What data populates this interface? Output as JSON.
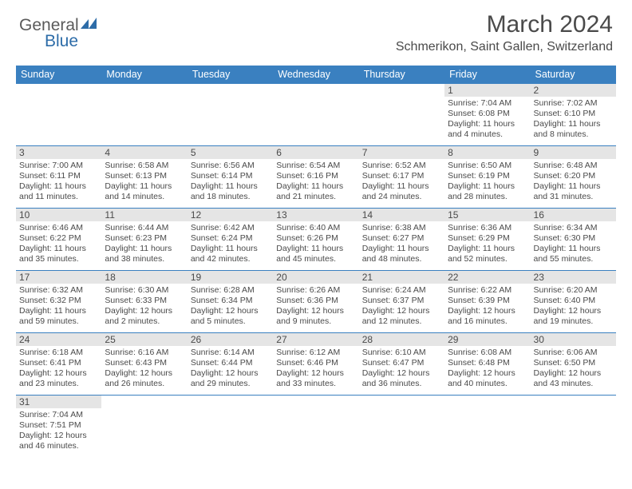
{
  "logo": {
    "text1": "General",
    "text2": "Blue"
  },
  "title": "March 2024",
  "location": "Schmerikon, Saint Gallen, Switzerland",
  "colors": {
    "header_bg": "#3a80c0",
    "header_text": "#ffffff",
    "daynum_bg": "#e5e5e5",
    "border": "#3a80c0",
    "text": "#4a4a4a",
    "logo_blue": "#2d6ca8"
  },
  "weekdays": [
    "Sunday",
    "Monday",
    "Tuesday",
    "Wednesday",
    "Thursday",
    "Friday",
    "Saturday"
  ],
  "grid": [
    [
      null,
      null,
      null,
      null,
      null,
      {
        "n": "1",
        "sr": "Sunrise: 7:04 AM",
        "ss": "Sunset: 6:08 PM",
        "dl1": "Daylight: 11 hours",
        "dl2": "and 4 minutes."
      },
      {
        "n": "2",
        "sr": "Sunrise: 7:02 AM",
        "ss": "Sunset: 6:10 PM",
        "dl1": "Daylight: 11 hours",
        "dl2": "and 8 minutes."
      }
    ],
    [
      {
        "n": "3",
        "sr": "Sunrise: 7:00 AM",
        "ss": "Sunset: 6:11 PM",
        "dl1": "Daylight: 11 hours",
        "dl2": "and 11 minutes."
      },
      {
        "n": "4",
        "sr": "Sunrise: 6:58 AM",
        "ss": "Sunset: 6:13 PM",
        "dl1": "Daylight: 11 hours",
        "dl2": "and 14 minutes."
      },
      {
        "n": "5",
        "sr": "Sunrise: 6:56 AM",
        "ss": "Sunset: 6:14 PM",
        "dl1": "Daylight: 11 hours",
        "dl2": "and 18 minutes."
      },
      {
        "n": "6",
        "sr": "Sunrise: 6:54 AM",
        "ss": "Sunset: 6:16 PM",
        "dl1": "Daylight: 11 hours",
        "dl2": "and 21 minutes."
      },
      {
        "n": "7",
        "sr": "Sunrise: 6:52 AM",
        "ss": "Sunset: 6:17 PM",
        "dl1": "Daylight: 11 hours",
        "dl2": "and 24 minutes."
      },
      {
        "n": "8",
        "sr": "Sunrise: 6:50 AM",
        "ss": "Sunset: 6:19 PM",
        "dl1": "Daylight: 11 hours",
        "dl2": "and 28 minutes."
      },
      {
        "n": "9",
        "sr": "Sunrise: 6:48 AM",
        "ss": "Sunset: 6:20 PM",
        "dl1": "Daylight: 11 hours",
        "dl2": "and 31 minutes."
      }
    ],
    [
      {
        "n": "10",
        "sr": "Sunrise: 6:46 AM",
        "ss": "Sunset: 6:22 PM",
        "dl1": "Daylight: 11 hours",
        "dl2": "and 35 minutes."
      },
      {
        "n": "11",
        "sr": "Sunrise: 6:44 AM",
        "ss": "Sunset: 6:23 PM",
        "dl1": "Daylight: 11 hours",
        "dl2": "and 38 minutes."
      },
      {
        "n": "12",
        "sr": "Sunrise: 6:42 AM",
        "ss": "Sunset: 6:24 PM",
        "dl1": "Daylight: 11 hours",
        "dl2": "and 42 minutes."
      },
      {
        "n": "13",
        "sr": "Sunrise: 6:40 AM",
        "ss": "Sunset: 6:26 PM",
        "dl1": "Daylight: 11 hours",
        "dl2": "and 45 minutes."
      },
      {
        "n": "14",
        "sr": "Sunrise: 6:38 AM",
        "ss": "Sunset: 6:27 PM",
        "dl1": "Daylight: 11 hours",
        "dl2": "and 48 minutes."
      },
      {
        "n": "15",
        "sr": "Sunrise: 6:36 AM",
        "ss": "Sunset: 6:29 PM",
        "dl1": "Daylight: 11 hours",
        "dl2": "and 52 minutes."
      },
      {
        "n": "16",
        "sr": "Sunrise: 6:34 AM",
        "ss": "Sunset: 6:30 PM",
        "dl1": "Daylight: 11 hours",
        "dl2": "and 55 minutes."
      }
    ],
    [
      {
        "n": "17",
        "sr": "Sunrise: 6:32 AM",
        "ss": "Sunset: 6:32 PM",
        "dl1": "Daylight: 11 hours",
        "dl2": "and 59 minutes."
      },
      {
        "n": "18",
        "sr": "Sunrise: 6:30 AM",
        "ss": "Sunset: 6:33 PM",
        "dl1": "Daylight: 12 hours",
        "dl2": "and 2 minutes."
      },
      {
        "n": "19",
        "sr": "Sunrise: 6:28 AM",
        "ss": "Sunset: 6:34 PM",
        "dl1": "Daylight: 12 hours",
        "dl2": "and 5 minutes."
      },
      {
        "n": "20",
        "sr": "Sunrise: 6:26 AM",
        "ss": "Sunset: 6:36 PM",
        "dl1": "Daylight: 12 hours",
        "dl2": "and 9 minutes."
      },
      {
        "n": "21",
        "sr": "Sunrise: 6:24 AM",
        "ss": "Sunset: 6:37 PM",
        "dl1": "Daylight: 12 hours",
        "dl2": "and 12 minutes."
      },
      {
        "n": "22",
        "sr": "Sunrise: 6:22 AM",
        "ss": "Sunset: 6:39 PM",
        "dl1": "Daylight: 12 hours",
        "dl2": "and 16 minutes."
      },
      {
        "n": "23",
        "sr": "Sunrise: 6:20 AM",
        "ss": "Sunset: 6:40 PM",
        "dl1": "Daylight: 12 hours",
        "dl2": "and 19 minutes."
      }
    ],
    [
      {
        "n": "24",
        "sr": "Sunrise: 6:18 AM",
        "ss": "Sunset: 6:41 PM",
        "dl1": "Daylight: 12 hours",
        "dl2": "and 23 minutes."
      },
      {
        "n": "25",
        "sr": "Sunrise: 6:16 AM",
        "ss": "Sunset: 6:43 PM",
        "dl1": "Daylight: 12 hours",
        "dl2": "and 26 minutes."
      },
      {
        "n": "26",
        "sr": "Sunrise: 6:14 AM",
        "ss": "Sunset: 6:44 PM",
        "dl1": "Daylight: 12 hours",
        "dl2": "and 29 minutes."
      },
      {
        "n": "27",
        "sr": "Sunrise: 6:12 AM",
        "ss": "Sunset: 6:46 PM",
        "dl1": "Daylight: 12 hours",
        "dl2": "and 33 minutes."
      },
      {
        "n": "28",
        "sr": "Sunrise: 6:10 AM",
        "ss": "Sunset: 6:47 PM",
        "dl1": "Daylight: 12 hours",
        "dl2": "and 36 minutes."
      },
      {
        "n": "29",
        "sr": "Sunrise: 6:08 AM",
        "ss": "Sunset: 6:48 PM",
        "dl1": "Daylight: 12 hours",
        "dl2": "and 40 minutes."
      },
      {
        "n": "30",
        "sr": "Sunrise: 6:06 AM",
        "ss": "Sunset: 6:50 PM",
        "dl1": "Daylight: 12 hours",
        "dl2": "and 43 minutes."
      }
    ],
    [
      {
        "n": "31",
        "sr": "Sunrise: 7:04 AM",
        "ss": "Sunset: 7:51 PM",
        "dl1": "Daylight: 12 hours",
        "dl2": "and 46 minutes."
      },
      null,
      null,
      null,
      null,
      null,
      null
    ]
  ]
}
